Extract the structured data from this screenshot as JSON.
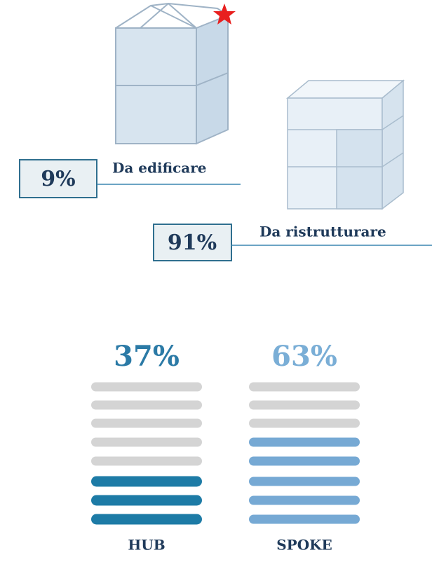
{
  "top": {
    "new_building": {
      "percent": "9%",
      "label": "Da edificare"
    },
    "renovation": {
      "percent": "91%",
      "label": "Da ristrutturare"
    }
  },
  "bottom": {
    "hub": {
      "percent": "37%",
      "label": "HUB"
    },
    "spoke": {
      "percent": "63%",
      "label": "SPOKE"
    }
  }
}
